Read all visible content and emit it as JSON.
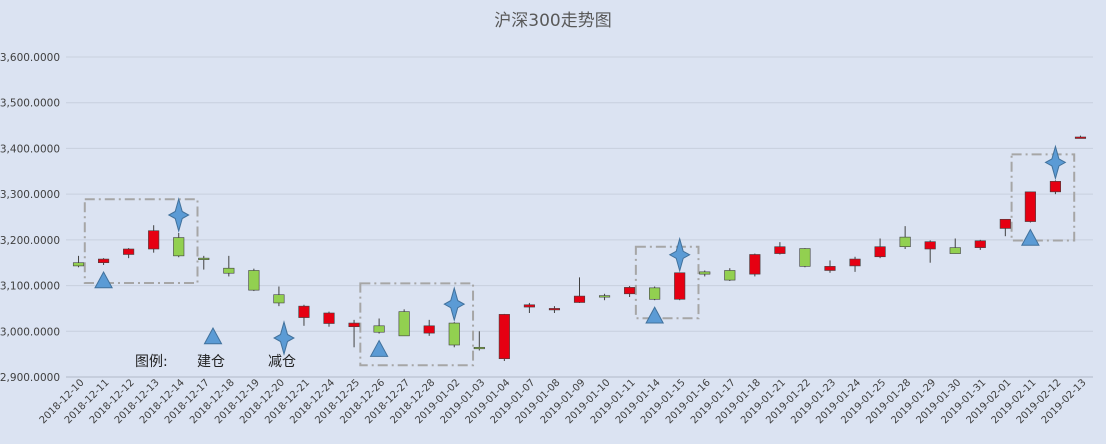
{
  "chart_data": {
    "type": "candlestick",
    "title": "沪深300走势图",
    "ylim": [
      2900,
      3600
    ],
    "y_ticks": [
      "2,900.0000",
      "3,000.0000",
      "3,100.0000",
      "3,200.0000",
      "3,300.0000",
      "3,400.0000",
      "3,500.0000",
      "3,600.0000"
    ],
    "grid": true,
    "up_color": "#e60012",
    "down_color": "#92d050",
    "categories": [
      "2018-12-10",
      "2018-12-11",
      "2018-12-12",
      "2018-12-13",
      "2018-12-14",
      "2018-12-17",
      "2018-12-18",
      "2018-12-19",
      "2018-12-20",
      "2018-12-21",
      "2018-12-24",
      "2018-12-25",
      "2018-12-26",
      "2018-12-27",
      "2018-12-28",
      "2019-01-02",
      "2019-01-03",
      "2019-01-04",
      "2019-01-07",
      "2019-01-08",
      "2019-01-09",
      "2019-01-10",
      "2019-01-11",
      "2019-01-14",
      "2019-01-15",
      "2019-01-16",
      "2019-01-17",
      "2019-01-18",
      "2019-01-21",
      "2019-01-22",
      "2019-01-23",
      "2019-01-24",
      "2019-01-25",
      "2019-01-28",
      "2019-01-29",
      "2019-01-30",
      "2019-01-31",
      "2019-02-01",
      "2019-02-11",
      "2019-02-12",
      "2019-02-13"
    ],
    "ohlc": [
      [
        3150,
        3165,
        3140,
        3143
      ],
      [
        3150,
        3160,
        3145,
        3158
      ],
      [
        3168,
        3182,
        3160,
        3180
      ],
      [
        3180,
        3232,
        3172,
        3220
      ],
      [
        3205,
        3215,
        3162,
        3165
      ],
      [
        3160,
        3165,
        3135,
        3158
      ],
      [
        3138,
        3165,
        3120,
        3127
      ],
      [
        3133,
        3137,
        3088,
        3090
      ],
      [
        3080,
        3098,
        3055,
        3062
      ],
      [
        3030,
        3058,
        3012,
        3055
      ],
      [
        3017,
        3043,
        3010,
        3040
      ],
      [
        3010,
        3025,
        2965,
        3018
      ],
      [
        3012,
        3028,
        2995,
        2998
      ],
      [
        3043,
        3048,
        2990,
        2990
      ],
      [
        2996,
        3025,
        2990,
        3012
      ],
      [
        3018,
        3020,
        2965,
        2970
      ],
      [
        2965,
        3000,
        2958,
        2962
      ],
      [
        2940,
        3038,
        2935,
        3037
      ],
      [
        3053,
        3062,
        3040,
        3058
      ],
      [
        3048,
        3055,
        3040,
        3050
      ],
      [
        3063,
        3118,
        3062,
        3077
      ],
      [
        3078,
        3082,
        3068,
        3075
      ],
      [
        3082,
        3099,
        3075,
        3096
      ],
      [
        3095,
        3098,
        3068,
        3070
      ],
      [
        3070,
        3128,
        3068,
        3128
      ],
      [
        3130,
        3133,
        3120,
        3125
      ],
      [
        3133,
        3138,
        3110,
        3112
      ],
      [
        3125,
        3170,
        3120,
        3168
      ],
      [
        3170,
        3195,
        3168,
        3185
      ],
      [
        3181,
        3182,
        3140,
        3142
      ],
      [
        3133,
        3155,
        3128,
        3142
      ],
      [
        3143,
        3163,
        3130,
        3158
      ],
      [
        3163,
        3203,
        3160,
        3185
      ],
      [
        3206,
        3230,
        3180,
        3185
      ],
      [
        3180,
        3199,
        3150,
        3196
      ],
      [
        3183,
        3203,
        3170,
        3170
      ],
      [
        3183,
        3200,
        3178,
        3198
      ],
      [
        3225,
        3245,
        3208,
        3245
      ],
      [
        3240,
        3305,
        3238,
        3305
      ],
      [
        3305,
        3330,
        3300,
        3328
      ],
      [
        3425,
        3428,
        3424,
        3425
      ]
    ],
    "buy_markers": [
      1,
      12,
      23,
      38
    ],
    "sell_markers": [
      4,
      15,
      24,
      39
    ],
    "signal_boxes": [
      [
        1,
        4
      ],
      [
        12,
        15
      ],
      [
        23,
        24
      ],
      [
        38,
        39
      ]
    ],
    "legend": {
      "label": "图例:",
      "buy": "建仓",
      "sell": "减仓",
      "buy_color": "#5b9bd5",
      "sell_color": "#5b9bd5"
    }
  }
}
